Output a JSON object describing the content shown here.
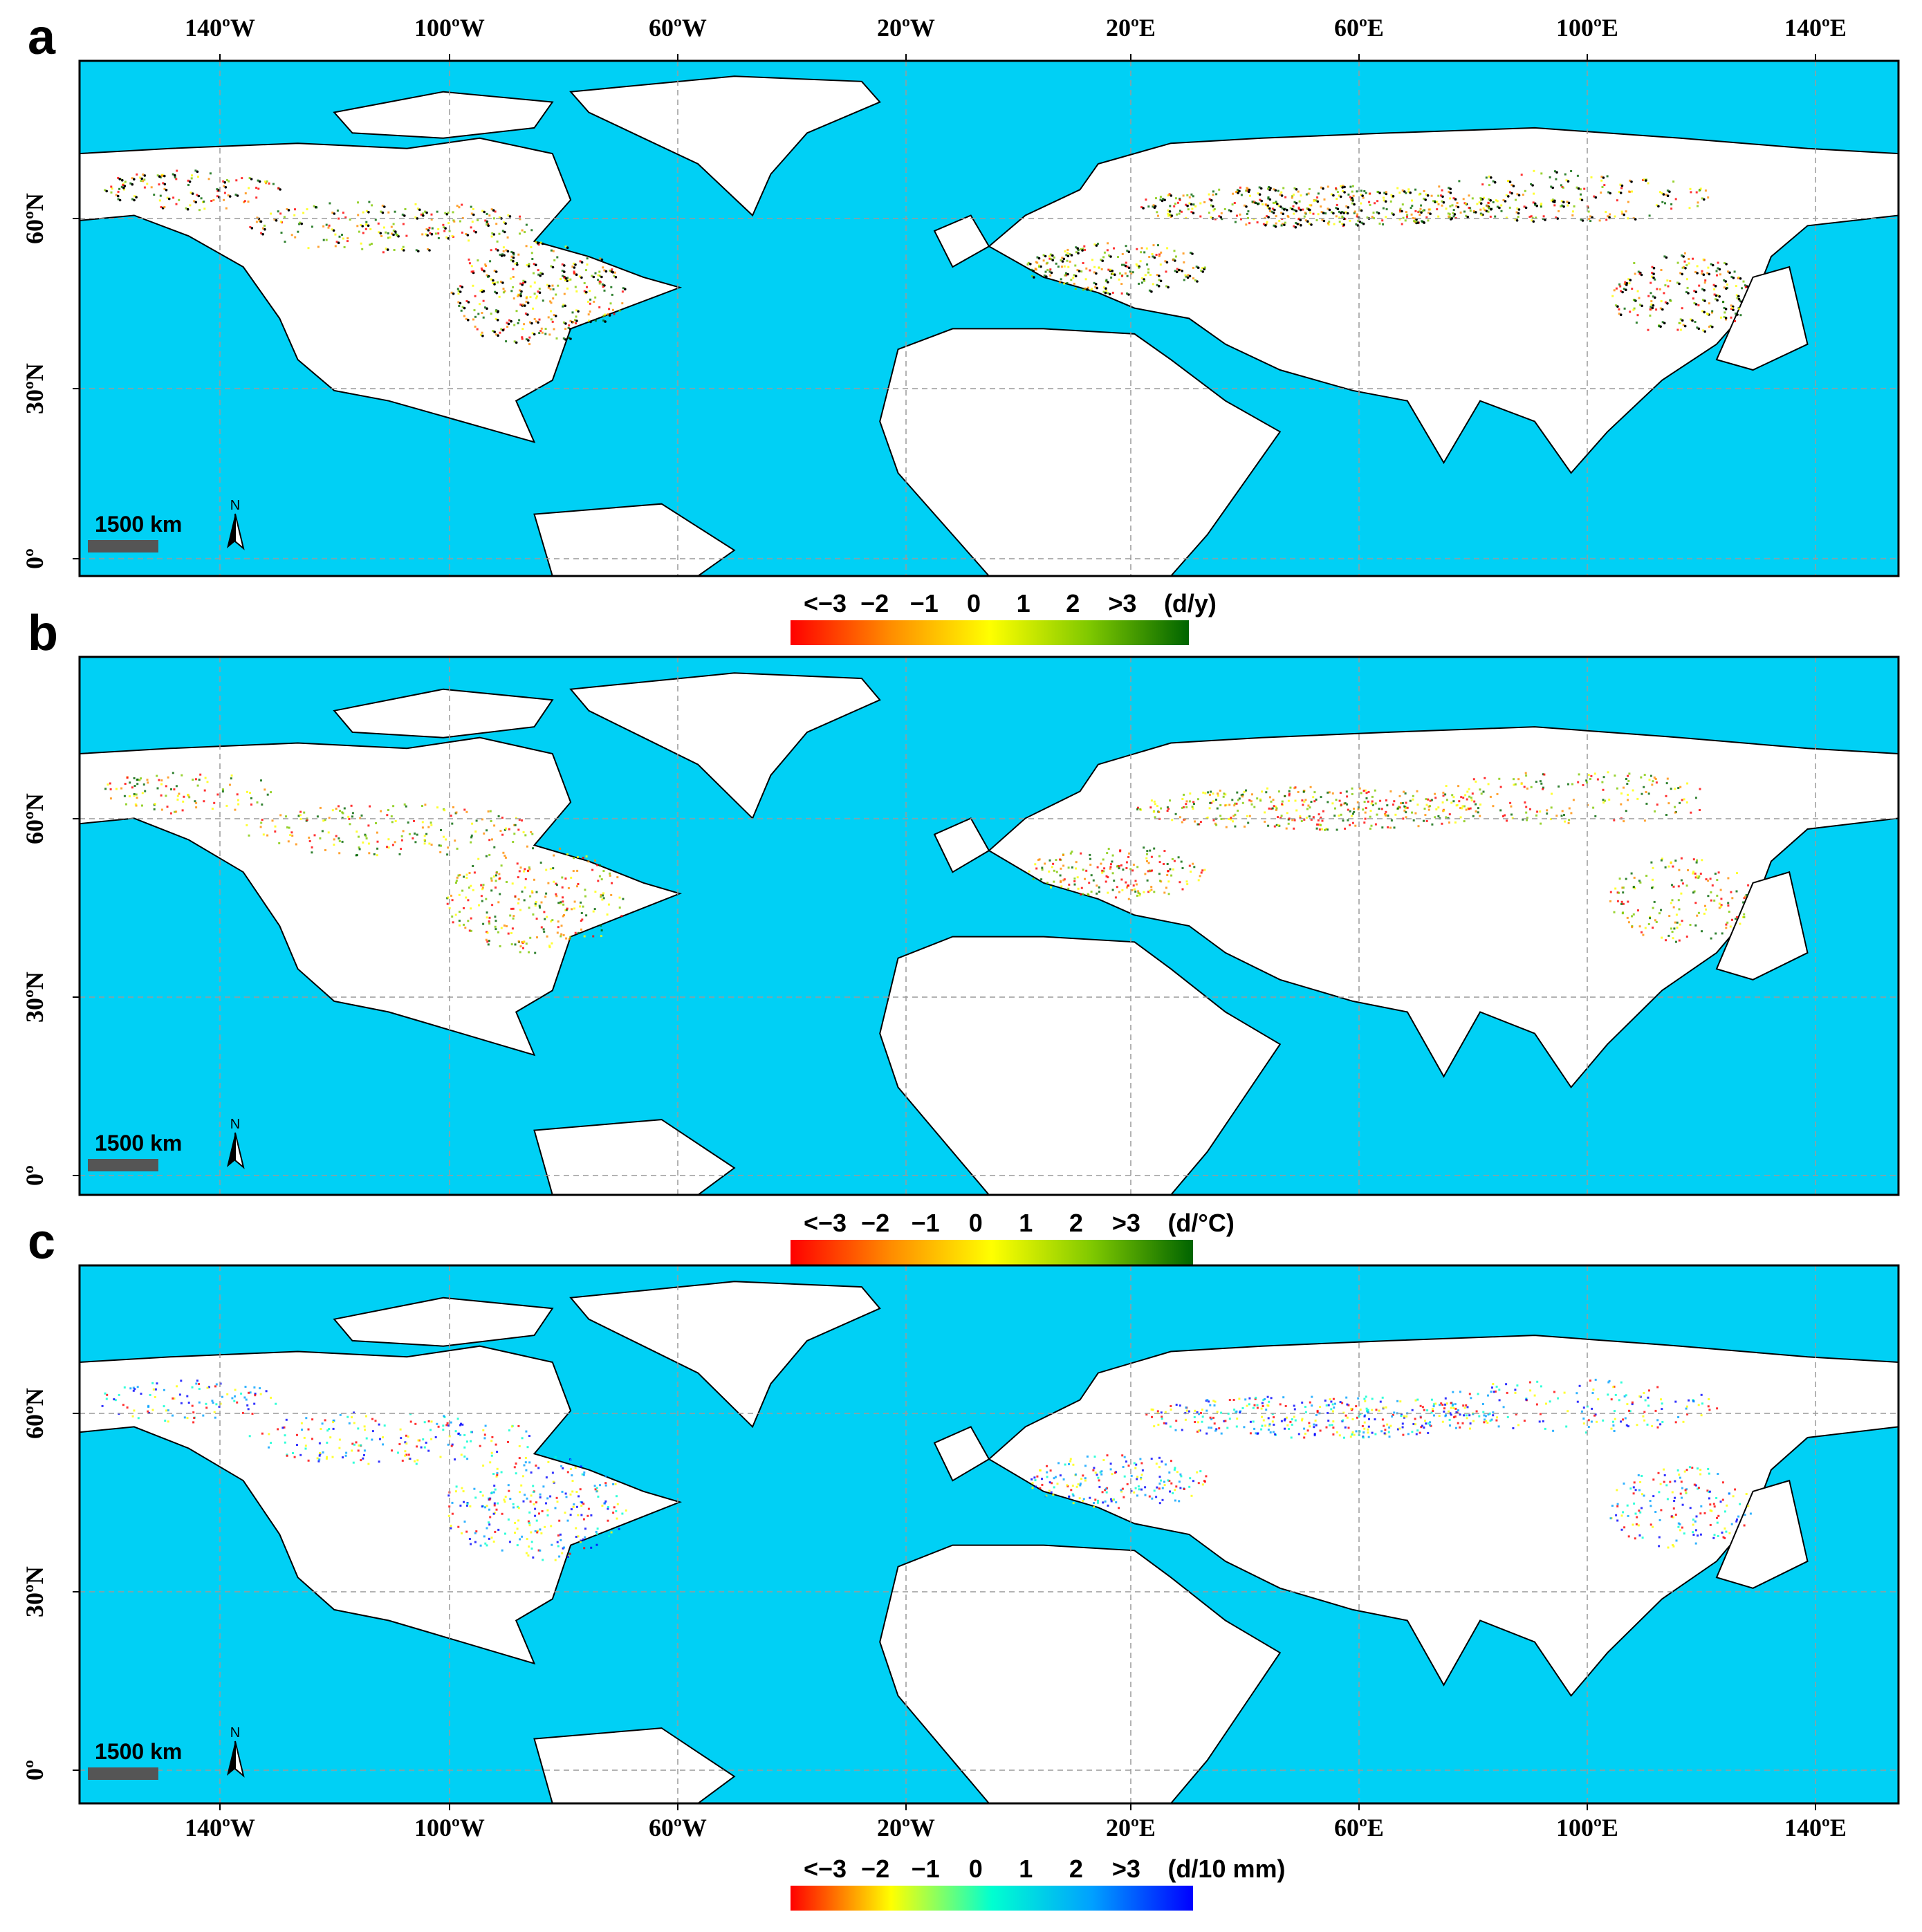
{
  "colors": {
    "ocean": "#00d0f5",
    "land": "#ffffff",
    "coast": "#000000",
    "grid": "#9a9a9a",
    "scalebar": "#555555"
  },
  "lon_labels": [
    "140ºW",
    "100ºW",
    "60ºW",
    "20ºW",
    "20ºE",
    "60ºE",
    "100ºE",
    "140ºE"
  ],
  "lat_labels": [
    "60ºN",
    "30ºN",
    "0º"
  ],
  "scale_label": "1500 km",
  "north_label": "N",
  "panels": [
    {
      "letter": "a",
      "colorbar": {
        "ticks": [
          "<−3",
          "−2",
          "−1",
          "0",
          "1",
          "2",
          ">3"
        ],
        "unit": "(d/y)",
        "colors": [
          "#ff0000",
          "#ff8c00",
          "#ffff00",
          "#7fc800",
          "#006400"
        ]
      },
      "points": "black"
    },
    {
      "letter": "b",
      "colorbar": {
        "ticks": [
          "<−3",
          "−2",
          "−1",
          "0",
          "1",
          "2",
          ">3"
        ],
        "unit": "(d/°C)",
        "colors": [
          "#ff0000",
          "#ff8c00",
          "#ffff00",
          "#7fc800",
          "#006400"
        ]
      },
      "points": "none"
    },
    {
      "letter": "c",
      "colorbar": {
        "ticks": [
          "<−3",
          "−2",
          "−1",
          "0",
          "1",
          "2",
          ">3"
        ],
        "unit": "(d/10 mm)",
        "colors": [
          "#ff0000",
          "#ffff00",
          "#00ffd0",
          "#00a0ff",
          "#0000ff"
        ]
      },
      "points": "none"
    }
  ]
}
